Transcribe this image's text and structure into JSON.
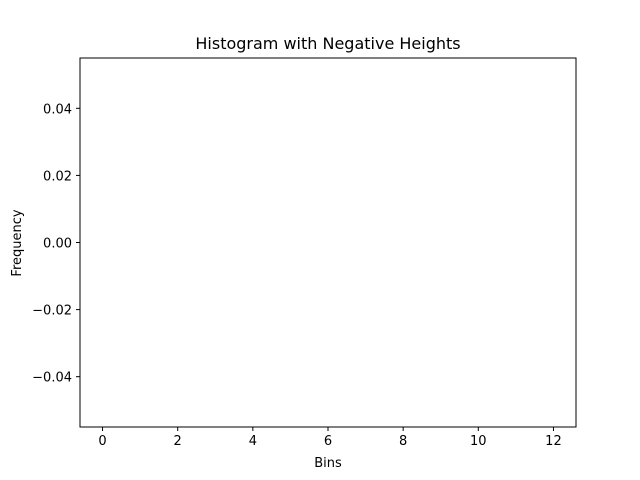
{
  "chart_data": {
    "type": "histogram",
    "title": "Histogram with Negative Heights",
    "xlabel": "Bins",
    "ylabel": "Frequency",
    "bins": [
      0,
      2,
      4,
      6,
      8,
      10,
      12
    ],
    "values": [
      0,
      0,
      0,
      0,
      0,
      0
    ],
    "color": "#000000",
    "xlim": [
      -0.6,
      12.6
    ],
    "xticks": [
      0,
      2,
      4,
      6,
      8,
      10,
      12
    ],
    "ylim": [
      -0.055,
      0.055
    ],
    "yticks": [
      {
        "value": -0.04,
        "label": "−0.04"
      },
      {
        "value": -0.02,
        "label": "−0.02"
      },
      {
        "value": 0,
        "label": "0.00"
      },
      0.02,
      0.04
    ],
    "grid": false
  }
}
